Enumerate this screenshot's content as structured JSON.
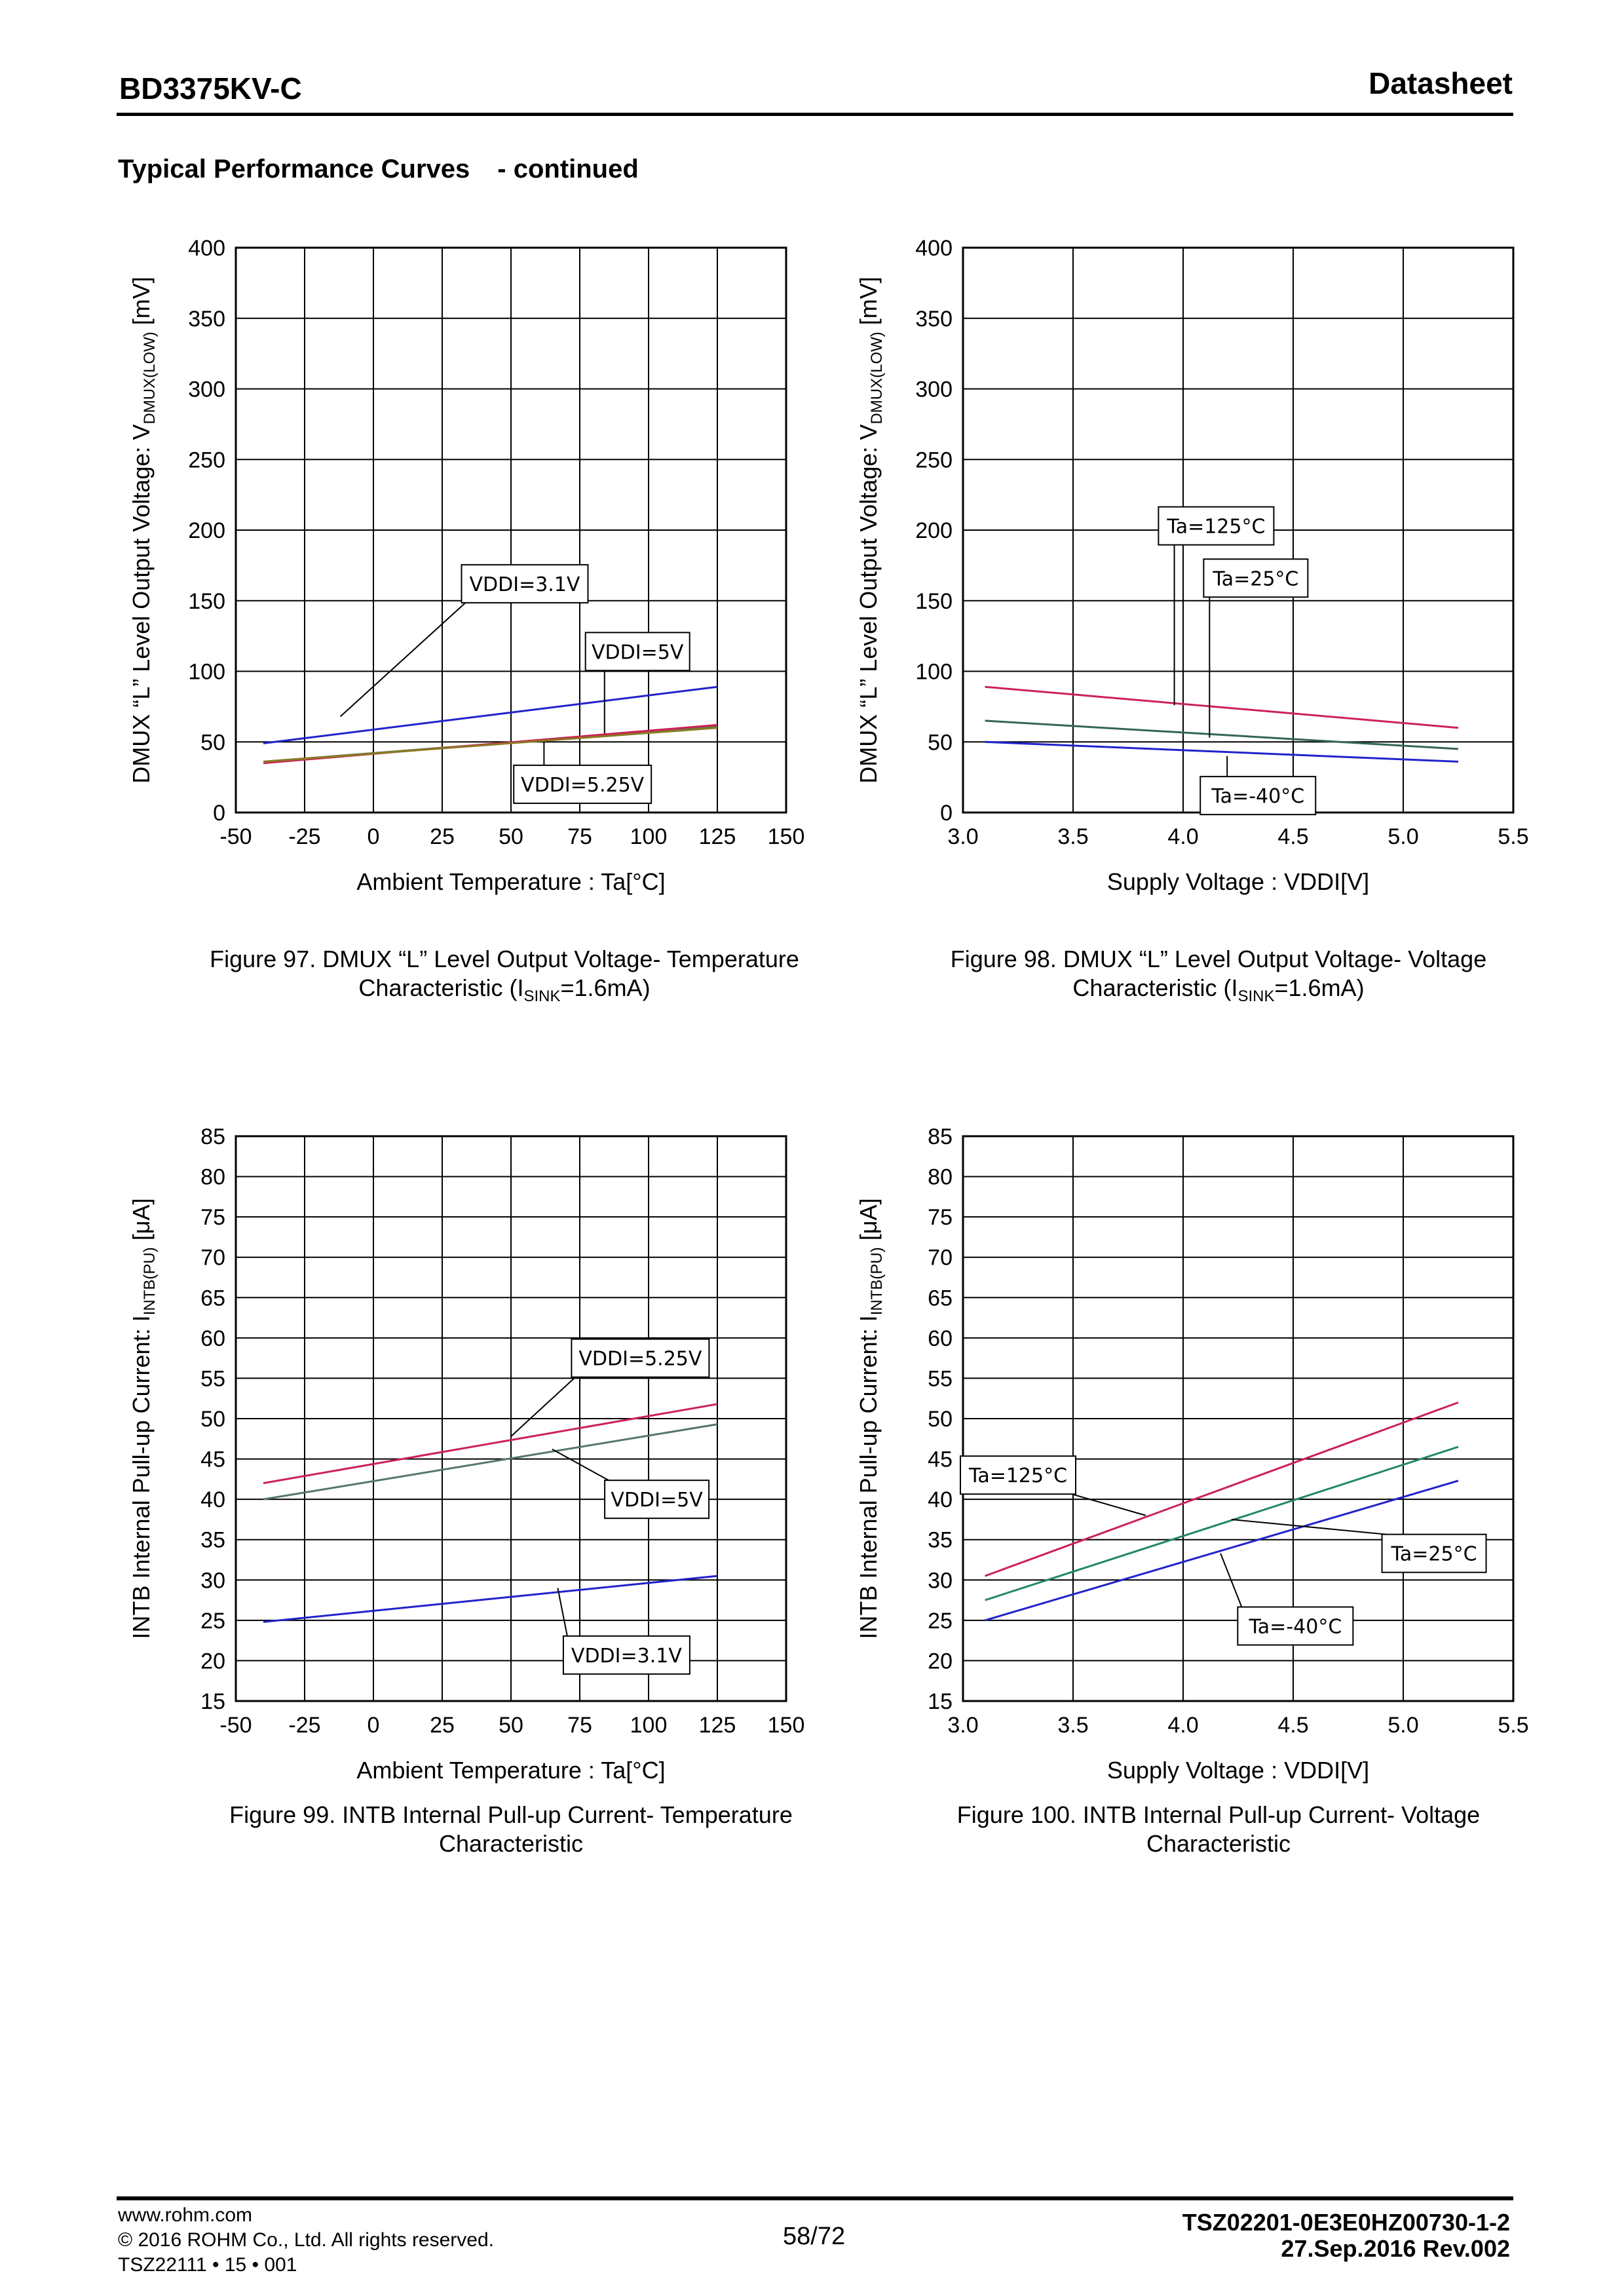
{
  "header": {
    "doc_id": "BD3375KV-C",
    "doc_type": "Datasheet"
  },
  "section": {
    "title": "Typical Performance Curves",
    "suffix": "- continued"
  },
  "figures": [
    {
      "line1": "Figure 97. DMUX “L” Level Output Voltage- Temperature",
      "line2_pre": "Characteristic (I",
      "line2_sub": "SINK",
      "line2_post": "=1.6mA)"
    },
    {
      "line1": "Figure 98. DMUX “L” Level Output Voltage- Voltage",
      "line2_pre": "Characteristic (I",
      "line2_sub": "SINK",
      "line2_post": "=1.6mA)"
    },
    {
      "line1": "Figure 99. INTB Internal Pull-up Current- Temperature",
      "line2_pre": "Characteristic",
      "line2_sub": "",
      "line2_post": ""
    },
    {
      "line1": "Figure 100. INTB Internal Pull-up Current- Voltage",
      "line2_pre": "Characteristic",
      "line2_sub": "",
      "line2_post": ""
    }
  ],
  "chart_data": [
    {
      "type": "line",
      "ylabel": {
        "pre": "DMUX “L” Level Output Voltage: V",
        "sub": "DMUX(LOW)",
        "post": " [mV]"
      },
      "xlabel": "Ambient Temperature : Ta[°C]",
      "xlim": [
        -50,
        150
      ],
      "ylim": [
        0,
        400
      ],
      "xticks": [
        "-50",
        "-25",
        "0",
        "25",
        "50",
        "75",
        "100",
        "125",
        "150"
      ],
      "yticks": [
        "0",
        "50",
        "100",
        "150",
        "200",
        "250",
        "300",
        "350",
        "400"
      ],
      "grid": true,
      "series": [
        {
          "name": "VDDI=3.1V",
          "color": "#2222cc",
          "x": [
            -40,
            125
          ],
          "y": [
            49,
            89
          ]
        },
        {
          "name": "VDDI=5V",
          "color": "#557755",
          "x": [
            -40,
            125
          ],
          "y": [
            36,
            61
          ]
        },
        {
          "name": "VDDI=5.25V",
          "color": "#cc2255",
          "x": [
            -40,
            125
          ],
          "y": [
            35,
            62
          ]
        },
        {
          "name": "",
          "color": "#8a7a22",
          "x": [
            -40,
            125
          ],
          "y": [
            36,
            60
          ]
        }
      ],
      "annotations": [
        {
          "text": "VDDI=3.1V",
          "box": [
            55,
            162
          ],
          "point": [
            -12,
            68
          ]
        },
        {
          "text": "VDDI=5V",
          "box": [
            96,
            114
          ],
          "point": [
            84,
            56
          ]
        },
        {
          "text": "VDDI=5.25V",
          "box": [
            76,
            20
          ],
          "point": [
            62,
            50
          ]
        }
      ]
    },
    {
      "type": "line",
      "ylabel": {
        "pre": "DMUX “L” Level Output Voltage: V",
        "sub": "DMUX(LOW)",
        "post": " [mV]"
      },
      "xlabel": "Supply Voltage : VDDI[V]",
      "xlim": [
        3.0,
        5.5
      ],
      "ylim": [
        0,
        400
      ],
      "xticks": [
        "3.0",
        "3.5",
        "4.0",
        "4.5",
        "5.0",
        "5.5"
      ],
      "yticks": [
        "0",
        "50",
        "100",
        "150",
        "200",
        "250",
        "300",
        "350",
        "400"
      ],
      "grid": true,
      "series": [
        {
          "name": "Ta=125°C",
          "color": "#cc2255",
          "x": [
            3.1,
            5.25
          ],
          "y": [
            89,
            60
          ]
        },
        {
          "name": "Ta=25°C",
          "color": "#336655",
          "x": [
            3.1,
            5.25
          ],
          "y": [
            65,
            45
          ]
        },
        {
          "name": "Ta=-40°C",
          "color": "#2222cc",
          "x": [
            3.1,
            5.25
          ],
          "y": [
            50,
            36
          ]
        }
      ],
      "annotations": [
        {
          "text": "Ta=125°C",
          "box": [
            4.15,
            203
          ],
          "point": [
            3.96,
            76
          ]
        },
        {
          "text": "Ta=25°C",
          "box": [
            4.33,
            166
          ],
          "point": [
            4.12,
            53
          ]
        },
        {
          "text": "Ta=-40°C",
          "box": [
            4.34,
            12
          ],
          "point": [
            4.2,
            40
          ]
        }
      ]
    },
    {
      "type": "line",
      "ylabel": {
        "pre": "INTB Internal Pull-up Current: I",
        "sub": "INTB(PU)",
        "post": " [μA]"
      },
      "xlabel": "Ambient Temperature : Ta[°C]",
      "xlim": [
        -50,
        150
      ],
      "ylim": [
        15,
        85
      ],
      "xticks": [
        "-50",
        "-25",
        "0",
        "25",
        "50",
        "75",
        "100",
        "125",
        "150"
      ],
      "yticks": [
        "15",
        "20",
        "25",
        "30",
        "35",
        "40",
        "45",
        "50",
        "55",
        "60",
        "65",
        "70",
        "75",
        "80",
        "85"
      ],
      "grid": true,
      "series": [
        {
          "name": "VDDI=5.25V",
          "color": "#cc2255",
          "x": [
            -40,
            125
          ],
          "y": [
            42,
            51.8
          ]
        },
        {
          "name": "VDDI=5V",
          "color": "#557766",
          "x": [
            -40,
            125
          ],
          "y": [
            40,
            49.3
          ]
        },
        {
          "name": "VDDI=3.1V",
          "color": "#2222cc",
          "x": [
            -40,
            125
          ],
          "y": [
            24.8,
            30.5
          ]
        }
      ],
      "annotations": [
        {
          "text": "VDDI=5.25V",
          "box": [
            97,
            57.5
          ],
          "point": [
            50,
            47.8
          ]
        },
        {
          "text": "VDDI=5V",
          "box": [
            103,
            40
          ],
          "point": [
            65,
            46.2
          ]
        },
        {
          "text": "VDDI=3.1V",
          "box": [
            92,
            20.7
          ],
          "point": [
            67,
            29
          ]
        }
      ]
    },
    {
      "type": "line",
      "ylabel": {
        "pre": "INTB Internal Pull-up Current: I",
        "sub": "INTB(PU)",
        "post": " [μA]"
      },
      "xlabel": "Supply Voltage : VDDI[V]",
      "xlim": [
        3.0,
        5.5
      ],
      "ylim": [
        15,
        85
      ],
      "xticks": [
        "3.0",
        "3.5",
        "4.0",
        "4.5",
        "5.0",
        "5.5"
      ],
      "yticks": [
        "15",
        "20",
        "25",
        "30",
        "35",
        "40",
        "45",
        "50",
        "55",
        "60",
        "65",
        "70",
        "75",
        "80",
        "85"
      ],
      "grid": true,
      "series": [
        {
          "name": "Ta=125°C",
          "color": "#cc2255",
          "x": [
            3.1,
            5.25
          ],
          "y": [
            30.5,
            52
          ]
        },
        {
          "name": "Ta=25°C",
          "color": "#228866",
          "x": [
            3.1,
            5.25
          ],
          "y": [
            27.5,
            46.5
          ]
        },
        {
          "name": "Ta=-40°C",
          "color": "#2222cc",
          "x": [
            3.1,
            5.25
          ],
          "y": [
            25,
            42.3
          ]
        }
      ],
      "annotations": [
        {
          "text": "Ta=125°C",
          "box": [
            3.25,
            43
          ],
          "point": [
            3.83,
            38
          ]
        },
        {
          "text": "Ta=25°C",
          "box": [
            5.14,
            33.3
          ],
          "point": [
            4.22,
            37.5
          ]
        },
        {
          "text": "Ta=-40°C",
          "box": [
            4.51,
            24.3
          ],
          "point": [
            4.17,
            33.3
          ]
        }
      ]
    }
  ],
  "footer": {
    "url": "www.rohm.com",
    "copyright": "© 2016 ROHM Co., Ltd. All rights reserved.",
    "code": "TSZ22111 • 15 • 001",
    "page": "58/72",
    "doc_number": "TSZ02201-0E3E0HZ00730-1-2",
    "date_rev": "27.Sep.2016 Rev.002"
  }
}
